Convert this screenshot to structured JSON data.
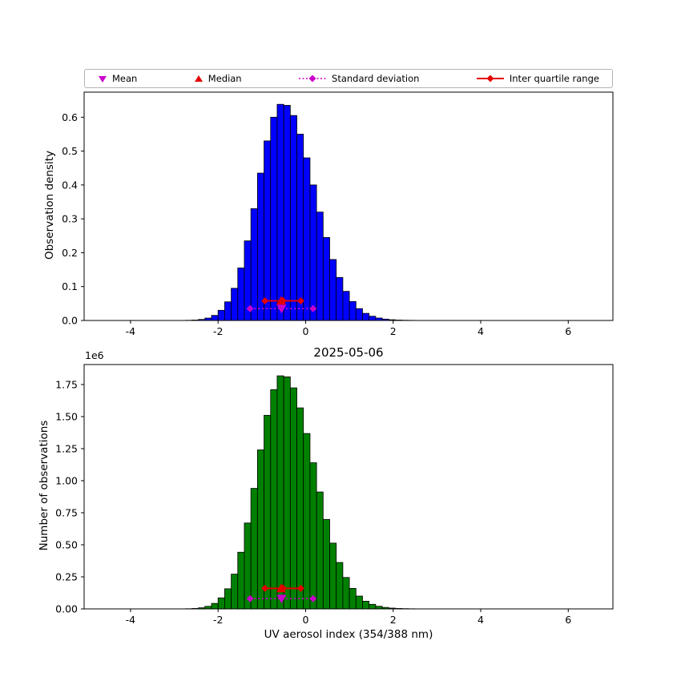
{
  "figure": {
    "background": "#ffffff"
  },
  "colors": {
    "mean": "#cc00cc",
    "median": "#e50000",
    "std": "#cc00cc",
    "iqr": "#e50000",
    "bar_edge": "#000000",
    "legend_border": "#b3b3b3"
  },
  "legend": {
    "items": [
      {
        "label": "Mean",
        "marker": "triangle-down-icon"
      },
      {
        "label": "Median",
        "marker": "triangle-up-icon"
      },
      {
        "label": "Standard deviation",
        "marker": "diamond-dotted-line-icon"
      },
      {
        "label": "Inter quartile range",
        "marker": "diamond-solid-line-icon"
      }
    ]
  },
  "chart_data": [
    {
      "name": "density-histogram",
      "type": "bar",
      "title": "",
      "xlabel": "",
      "ylabel": "Observation density",
      "color": "#0000ff",
      "xlim": [
        -5.06,
        7.02
      ],
      "ylim": [
        0,
        0.674
      ],
      "xticks": {
        "values": [
          -4,
          -2,
          0,
          2,
          4,
          6
        ],
        "labels": [
          "-4",
          "-2",
          "0",
          "2",
          "4",
          "6"
        ]
      },
      "yticks": {
        "values": [
          0,
          0.1,
          0.2,
          0.3,
          0.4,
          0.5,
          0.6
        ],
        "labels": [
          "0.0",
          "0.1",
          "0.2",
          "0.3",
          "0.4",
          "0.5",
          "0.6"
        ]
      },
      "bin_start": -3.05,
      "bin_width": 0.15,
      "values": [
        0.0001,
        0.0002,
        0.0005,
        0.0012,
        0.003,
        0.007,
        0.015,
        0.03,
        0.055,
        0.095,
        0.155,
        0.235,
        0.33,
        0.435,
        0.53,
        0.6,
        0.638,
        0.635,
        0.605,
        0.55,
        0.48,
        0.4,
        0.32,
        0.245,
        0.18,
        0.127,
        0.086,
        0.056,
        0.035,
        0.021,
        0.0125,
        0.0072,
        0.004,
        0.0022,
        0.0012,
        0.0007,
        0.0004,
        0.0002,
        0.0001,
        6e-05,
        3e-05
      ],
      "markers": {
        "mean": {
          "x": -0.55,
          "y": 0.035
        },
        "median": {
          "x": -0.56,
          "y": 0.058
        },
        "std": {
          "x0": -1.27,
          "x1": 0.17,
          "y": 0.035
        },
        "iqr": {
          "x0": -0.93,
          "x1": -0.11,
          "y": 0.058
        }
      }
    },
    {
      "name": "counts-histogram",
      "type": "bar",
      "title": "2025-05-06",
      "xlabel": "UV aerosol index (354/388 nm)",
      "ylabel": "Number of observations",
      "offset_label": "1e6",
      "color": "#008000",
      "xlim": [
        -5.06,
        7.02
      ],
      "ylim": [
        0,
        1906000
      ],
      "xticks": {
        "values": [
          -4,
          -2,
          0,
          2,
          4,
          6
        ],
        "labels": [
          "-4",
          "-2",
          "0",
          "2",
          "4",
          "6"
        ]
      },
      "yticks": {
        "values": [
          0,
          250000,
          500000,
          750000,
          1000000,
          1250000,
          1500000,
          1750000
        ],
        "labels": [
          "0.00",
          "0.25",
          "0.50",
          "0.75",
          "1.00",
          "1.25",
          "1.50",
          "1.75"
        ]
      },
      "bin_start": -3.05,
      "bin_width": 0.15,
      "values": [
        300,
        600,
        1400,
        3400,
        8600,
        20000,
        43000,
        86000,
        157000,
        271000,
        442000,
        670000,
        940000,
        1240000,
        1510000,
        1710000,
        1818000,
        1810000,
        1724000,
        1568000,
        1368000,
        1140000,
        912000,
        698000,
        513000,
        362000,
        245000,
        160000,
        100000,
        60000,
        35600,
        20500,
        11400,
        6300,
        3400,
        2000,
        1100,
        600,
        300,
        170,
        90
      ],
      "markers": {
        "mean": {
          "x": -0.55,
          "y": 80000
        },
        "median": {
          "x": -0.56,
          "y": 160000
        },
        "std": {
          "x0": -1.27,
          "x1": 0.17,
          "y": 80000
        },
        "iqr": {
          "x0": -0.93,
          "x1": -0.11,
          "y": 160000
        }
      }
    }
  ]
}
